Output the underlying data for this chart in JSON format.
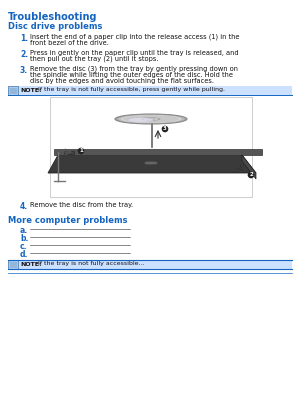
{
  "bg_color": "#ffffff",
  "blue": "#1565c0",
  "black": "#111111",
  "gray_text": "#333333",
  "note_bg": "#cce0ff",
  "note_border": "#1565c0",
  "underline_color": "#1565c0",
  "title": "Troubleshooting",
  "subtitle": "Disc drive problems",
  "step1_num": "1.",
  "step1_text": "Insert the end of a paper clip into the release access (1) in the\nfront bezel of the drive.",
  "step2_num": "2.",
  "step2_text": "Press in gently on the paper clip until the tray is released, and\nthen pull out the tray (2) until it stops.",
  "step3_num": "3.",
  "step3_text": "Remove the disc (3) from the tray by gently pressing down on\nthe spindle while lifting the outer edges of the disc. Hold the\ndisc by the edges and avoid touching the flat surfaces.",
  "note1_label": "NOTE:",
  "note1_text": "If the tray is not fully accessible, press gently while pulling.",
  "step4_num": "4.",
  "step4_text": "Remove the disc from the tray.",
  "section2_title": "More computer problems",
  "steps2": [
    "a.",
    "b.",
    "c.",
    "d."
  ],
  "note2_label": "NOTE:",
  "note2_text": "If the tray is not fully accessible..."
}
